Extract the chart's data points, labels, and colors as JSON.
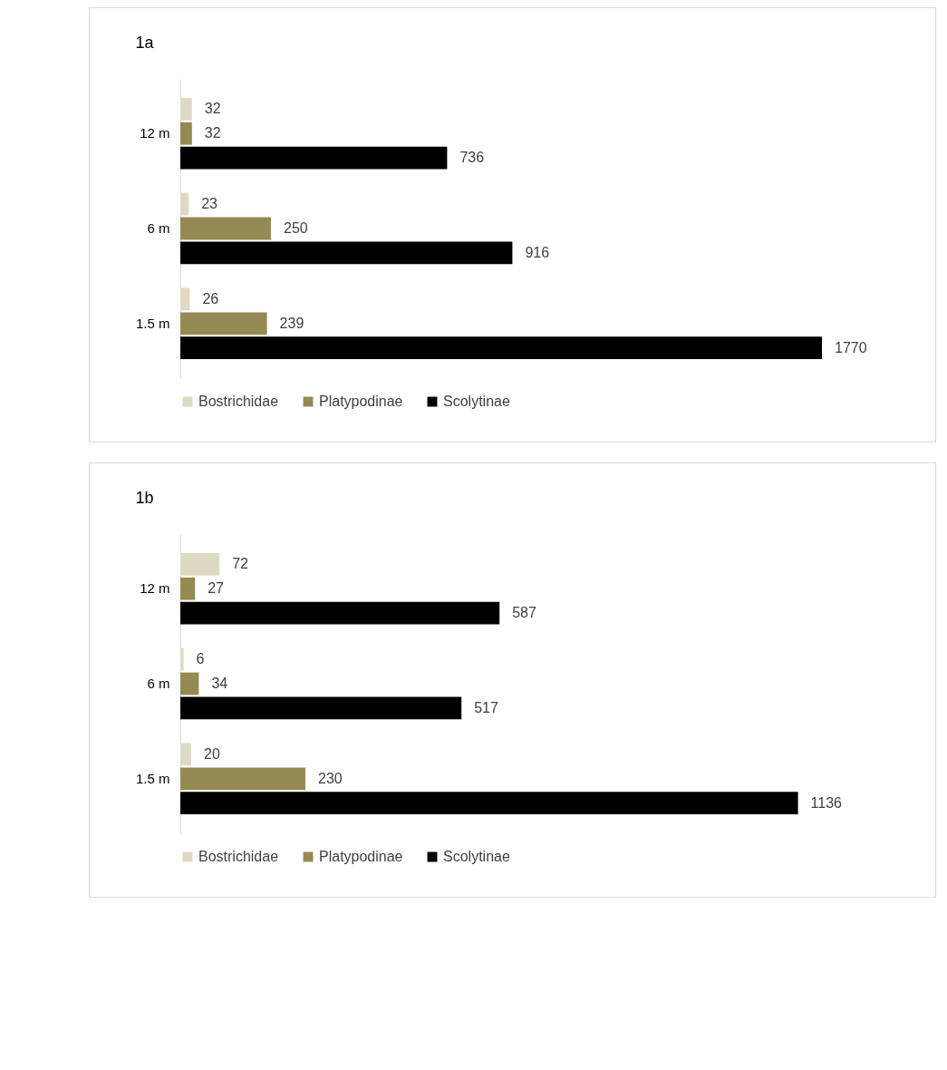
{
  "chart_data": [
    {
      "type": "bar",
      "title": "1a",
      "orientation": "horizontal",
      "categories": [
        "12 m",
        "6 m",
        "1.5 m"
      ],
      "series": [
        {
          "name": "Bostrichidae",
          "color": "#ddd9c3",
          "values": [
            32,
            23,
            26
          ]
        },
        {
          "name": "Platypodinae",
          "color": "#948a54",
          "values": [
            32,
            250,
            239
          ]
        },
        {
          "name": "Scolytinae",
          "color": "#000000",
          "values": [
            736,
            916,
            1770
          ]
        }
      ],
      "data_labels": true,
      "legend": "bottom",
      "tick_labels": "y"
    },
    {
      "type": "bar",
      "title": "1b",
      "orientation": "horizontal",
      "categories": [
        "12 m",
        "6 m",
        "1.5 m"
      ],
      "series": [
        {
          "name": "Bostrichidae",
          "color": "#ddd9c3",
          "values": [
            72,
            6,
            20
          ]
        },
        {
          "name": "Platypodinae",
          "color": "#948a54",
          "values": [
            27,
            34,
            230
          ]
        },
        {
          "name": "Scolytinae",
          "color": "#000000",
          "values": [
            587,
            517,
            1136
          ]
        }
      ],
      "data_labels": true,
      "legend": "bottom",
      "tick_labels": "y"
    }
  ]
}
